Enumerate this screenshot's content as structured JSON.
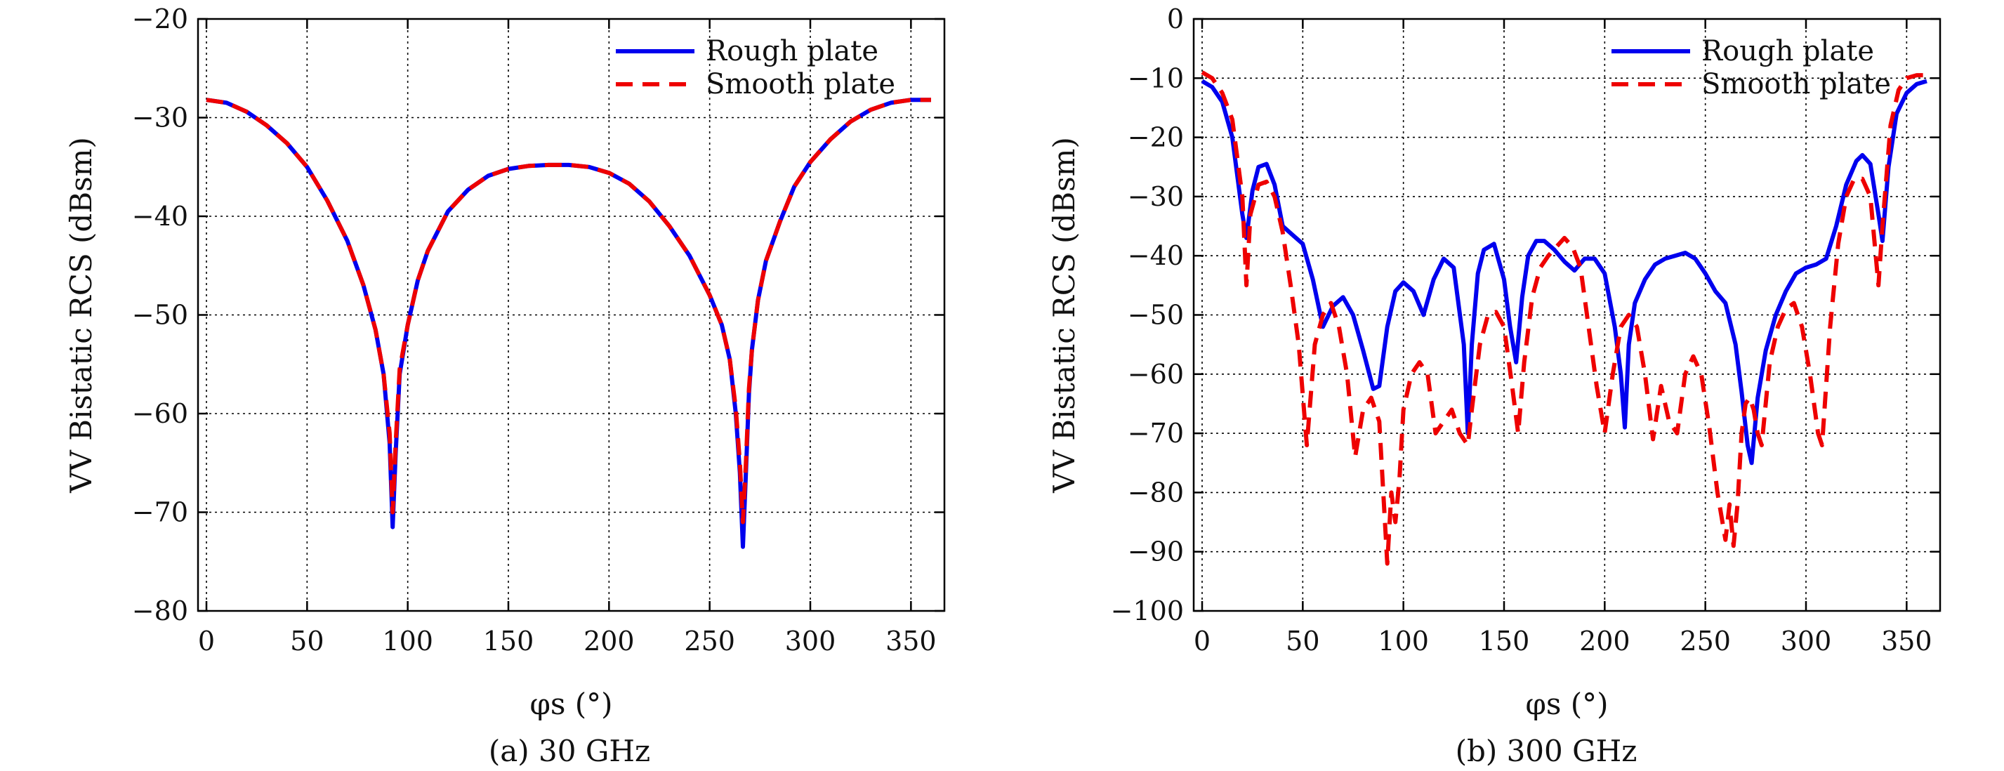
{
  "chart_data": [
    {
      "type": "line",
      "caption": "(a) 30 GHz",
      "xlabel": "φs (°)",
      "ylabel": "VV Bistatic RCS (dBsm)",
      "xlim": [
        0,
        360
      ],
      "ylim": [
        -80,
        -20
      ],
      "xticks": [
        0,
        50,
        100,
        150,
        200,
        250,
        300,
        350
      ],
      "yticks": [
        -20,
        -30,
        -40,
        -50,
        -60,
        -70,
        -80
      ],
      "grid": true,
      "legend": "top-right",
      "series": [
        {
          "name": "Rough plate",
          "color": "#0000ee",
          "style": "solid",
          "x": [
            0,
            10,
            20,
            30,
            40,
            50,
            60,
            70,
            78,
            84,
            88,
            91,
            92.5,
            94,
            96,
            100,
            105,
            110,
            120,
            130,
            140,
            150,
            160,
            170,
            180,
            190,
            200,
            210,
            220,
            230,
            240,
            250,
            256,
            260,
            263,
            265,
            266.5,
            268,
            269.5,
            271,
            274,
            278,
            285,
            292,
            300,
            310,
            320,
            330,
            340,
            350,
            360
          ],
          "values": [
            -28.2,
            -28.5,
            -29.4,
            -30.8,
            -32.6,
            -35.0,
            -38.4,
            -42.5,
            -47.0,
            -51.5,
            -56.0,
            -63.0,
            -71.5,
            -64.0,
            -56.0,
            -51.0,
            -46.5,
            -43.5,
            -39.5,
            -37.3,
            -35.9,
            -35.2,
            -34.9,
            -34.8,
            -34.8,
            -35.0,
            -35.6,
            -36.7,
            -38.5,
            -41.0,
            -44.0,
            -48.0,
            -51.0,
            -54.5,
            -60.0,
            -66.0,
            -73.5,
            -66.0,
            -58.0,
            -53.5,
            -48.5,
            -44.5,
            -40.5,
            -37.0,
            -34.5,
            -32.2,
            -30.4,
            -29.2,
            -28.5,
            -28.2,
            -28.2
          ]
        },
        {
          "name": "Smooth plate",
          "color": "#ee0000",
          "style": "dashed",
          "x": [
            0,
            10,
            20,
            30,
            40,
            50,
            60,
            70,
            78,
            84,
            88,
            91,
            92.5,
            94,
            96,
            100,
            105,
            110,
            120,
            130,
            140,
            150,
            160,
            170,
            180,
            190,
            200,
            210,
            220,
            230,
            240,
            250,
            256,
            260,
            263,
            265,
            266.5,
            268,
            269.5,
            271,
            274,
            278,
            285,
            292,
            300,
            310,
            320,
            330,
            340,
            350,
            360
          ],
          "values": [
            -28.2,
            -28.5,
            -29.4,
            -30.8,
            -32.6,
            -35.0,
            -38.4,
            -42.5,
            -47.0,
            -51.5,
            -56.0,
            -62.0,
            -70.0,
            -63.0,
            -55.5,
            -51.0,
            -46.5,
            -43.5,
            -39.5,
            -37.3,
            -35.9,
            -35.2,
            -34.9,
            -34.8,
            -34.8,
            -35.0,
            -35.6,
            -36.7,
            -38.5,
            -41.0,
            -44.0,
            -48.0,
            -51.0,
            -54.5,
            -59.5,
            -65.0,
            -71.0,
            -65.0,
            -57.5,
            -53.5,
            -48.5,
            -44.5,
            -40.5,
            -37.0,
            -34.5,
            -32.2,
            -30.4,
            -29.2,
            -28.5,
            -28.2,
            -28.2
          ]
        }
      ]
    },
    {
      "type": "line",
      "caption": "(b) 300 GHz",
      "xlabel": "φs (°)",
      "ylabel": "VV Bistatic RCS (dBsm)",
      "xlim": [
        0,
        360
      ],
      "ylim": [
        -100,
        0
      ],
      "xticks": [
        0,
        50,
        100,
        150,
        200,
        250,
        300,
        350
      ],
      "yticks": [
        0,
        -10,
        -20,
        -30,
        -40,
        -50,
        -60,
        -70,
        -80,
        -90,
        -100
      ],
      "grid": true,
      "legend": "top-right",
      "series": [
        {
          "name": "Rough plate",
          "color": "#0000ee",
          "style": "solid",
          "x": [
            0,
            5,
            10,
            15,
            20,
            22,
            25,
            28,
            32,
            36,
            40,
            45,
            50,
            55,
            60,
            65,
            70,
            75,
            80,
            85,
            88,
            92,
            96,
            100,
            105,
            110,
            115,
            120,
            125,
            130,
            132,
            134,
            137,
            140,
            145,
            150,
            153,
            156,
            159,
            162,
            166,
            170,
            175,
            180,
            185,
            190,
            195,
            200,
            205,
            208,
            210,
            212,
            215,
            220,
            225,
            230,
            235,
            240,
            245,
            250,
            255,
            260,
            265,
            268,
            271,
            273,
            276,
            280,
            285,
            290,
            295,
            300,
            305,
            310,
            315,
            320,
            325,
            328,
            332,
            336,
            338,
            341,
            345,
            350,
            355,
            360
          ],
          "values": [
            -10.5,
            -11.5,
            -14.0,
            -20.0,
            -33.0,
            -37.0,
            -29.0,
            -25.0,
            -24.5,
            -28.0,
            -35.0,
            -36.5,
            -38.0,
            -44.0,
            -52.0,
            -48.5,
            -47.0,
            -50.0,
            -56.0,
            -62.5,
            -62.0,
            -52.0,
            -46.0,
            -44.5,
            -46.0,
            -50.0,
            -44.0,
            -40.5,
            -42.0,
            -55.0,
            -70.0,
            -55.0,
            -43.0,
            -39.0,
            -38.0,
            -44.0,
            -52.0,
            -58.0,
            -47.0,
            -40.0,
            -37.5,
            -37.5,
            -39.0,
            -41.0,
            -42.5,
            -40.5,
            -40.5,
            -43.0,
            -52.0,
            -60.0,
            -69.0,
            -55.0,
            -48.0,
            -44.0,
            -41.5,
            -40.5,
            -40.0,
            -39.5,
            -40.5,
            -43.0,
            -46.0,
            -48.0,
            -55.0,
            -63.0,
            -72.0,
            -75.0,
            -64.0,
            -56.0,
            -50.0,
            -46.0,
            -43.0,
            -42.0,
            -41.5,
            -40.5,
            -35.0,
            -28.0,
            -24.0,
            -23.0,
            -24.5,
            -33.0,
            -37.5,
            -25.0,
            -16.0,
            -12.5,
            -11.0,
            -10.5
          ]
        },
        {
          "name": "Smooth plate",
          "color": "#ee0000",
          "style": "dashed",
          "x": [
            0,
            5,
            10,
            15,
            20,
            22,
            24,
            28,
            32,
            36,
            40,
            44,
            48,
            52,
            56,
            60,
            64,
            68,
            72,
            76,
            80,
            84,
            88,
            90,
            92,
            94,
            96,
            98,
            100,
            104,
            108,
            112,
            116,
            120,
            124,
            128,
            132,
            134,
            138,
            142,
            146,
            150,
            154,
            157,
            160,
            164,
            168,
            172,
            176,
            180,
            184,
            188,
            192,
            196,
            200,
            204,
            208,
            212,
            216,
            220,
            224,
            228,
            232,
            236,
            240,
            244,
            248,
            252,
            256,
            260,
            262,
            264,
            266,
            268,
            270,
            272,
            274,
            276,
            278,
            282,
            286,
            290,
            294,
            298,
            302,
            306,
            308,
            312,
            316,
            320,
            324,
            328,
            332,
            336,
            338,
            342,
            346,
            350,
            355,
            360
          ],
          "values": [
            -9.0,
            -10.0,
            -12.5,
            -17.0,
            -30.0,
            -45.0,
            -33.0,
            -28.0,
            -27.5,
            -30.0,
            -36.0,
            -45.0,
            -55.0,
            -72.0,
            -55.0,
            -50.0,
            -48.0,
            -52.0,
            -60.0,
            -74.0,
            -66.0,
            -64.0,
            -68.0,
            -80.0,
            -92.0,
            -80.0,
            -85.0,
            -78.0,
            -66.0,
            -60.0,
            -58.0,
            -60.0,
            -70.0,
            -68.0,
            -66.0,
            -70.0,
            -72.0,
            -66.0,
            -55.0,
            -50.0,
            -49.5,
            -52.0,
            -62.0,
            -70.0,
            -58.0,
            -47.0,
            -42.0,
            -40.0,
            -38.5,
            -37.0,
            -38.5,
            -42.0,
            -52.0,
            -62.0,
            -70.0,
            -60.0,
            -52.0,
            -50.0,
            -52.0,
            -60.0,
            -71.0,
            -62.0,
            -68.0,
            -70.0,
            -60.0,
            -57.0,
            -60.0,
            -69.0,
            -80.0,
            -88.0,
            -82.0,
            -89.0,
            -82.0,
            -70.0,
            -65.0,
            -64.0,
            -66.0,
            -70.0,
            -72.0,
            -58.0,
            -52.0,
            -49.0,
            -48.0,
            -52.0,
            -60.0,
            -70.0,
            -72.0,
            -52.0,
            -38.0,
            -30.0,
            -27.0,
            -27.0,
            -30.0,
            -45.0,
            -35.0,
            -18.0,
            -12.0,
            -10.0,
            -9.5,
            -9.5
          ]
        }
      ]
    }
  ]
}
